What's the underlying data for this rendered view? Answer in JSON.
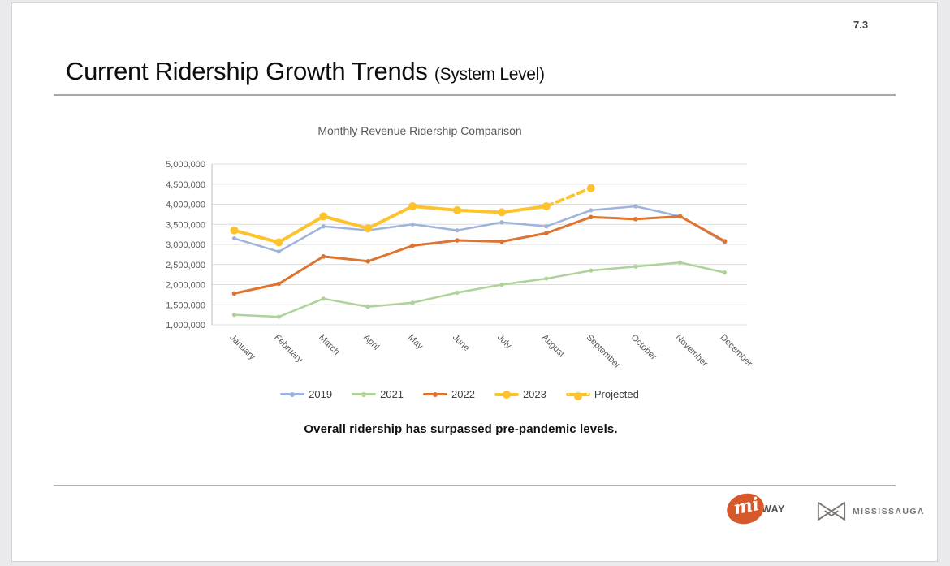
{
  "page": {
    "number": "7.3"
  },
  "header": {
    "title": "Current Ridership Growth Trends",
    "subtitle": "(System Level)"
  },
  "note": "Overall ridership has surpassed pre-pandemic levels.",
  "footer": {
    "miway_script": "mi",
    "miway_label": "WAY",
    "mississauga_label": "MISSISSAUGA"
  },
  "colors": {
    "grid": "#dcdcdc",
    "axis": "#bfbfbf",
    "chart_text": "#595959",
    "legend_text": "#3f3f3f"
  },
  "chart_data": {
    "type": "line",
    "title": "Monthly Revenue Ridership Comparison",
    "categories": [
      "January",
      "February",
      "March",
      "April",
      "May",
      "June",
      "July",
      "August",
      "September",
      "October",
      "November",
      "December"
    ],
    "ylim": [
      1000000,
      5000000
    ],
    "ytick_step": 500000,
    "grid": true,
    "legend_position": "bottom",
    "series": [
      {
        "name": "2019",
        "color": "#9fb3dd",
        "line_width": 2.5,
        "marker_r": 2.6,
        "thick": false,
        "dashed": false,
        "markers": "all",
        "values": [
          3150000,
          2820000,
          3450000,
          3350000,
          3500000,
          3350000,
          3550000,
          3450000,
          3850000,
          3950000,
          3700000,
          3050000
        ]
      },
      {
        "name": "2021",
        "color": "#afd29a",
        "line_width": 2.5,
        "marker_r": 2.6,
        "thick": false,
        "dashed": false,
        "markers": "all",
        "values": [
          1250000,
          1200000,
          1650000,
          1450000,
          1550000,
          1800000,
          2000000,
          2150000,
          2350000,
          2450000,
          2550000,
          2300000
        ]
      },
      {
        "name": "2022",
        "color": "#de7430",
        "line_width": 3,
        "marker_r": 2.8,
        "thick": false,
        "dashed": false,
        "markers": "all",
        "values": [
          1780000,
          2020000,
          2700000,
          2580000,
          2970000,
          3100000,
          3070000,
          3280000,
          3680000,
          3630000,
          3700000,
          3080000
        ]
      },
      {
        "name": "2023",
        "color": "#fdc32c",
        "line_width": 4,
        "marker_r": 5,
        "thick": true,
        "dashed": false,
        "markers": "all",
        "values": [
          3350000,
          3050000,
          3700000,
          3400000,
          3950000,
          3850000,
          3800000,
          3950000,
          null,
          null,
          null,
          null
        ]
      },
      {
        "name": "Projected",
        "color": "#fdc32c",
        "line_width": 4,
        "marker_r": 5,
        "thick": true,
        "dashed": true,
        "markers": "last",
        "values": [
          null,
          null,
          null,
          null,
          null,
          null,
          null,
          3950000,
          4400000,
          null,
          null,
          null
        ]
      }
    ]
  }
}
